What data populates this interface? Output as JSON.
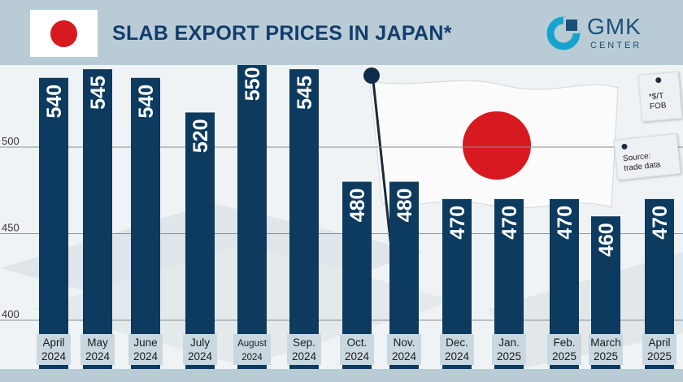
{
  "header": {
    "title": "SLAB EXPORT PRICES IN JAPAN*",
    "logo_line1": "GMK",
    "logo_line2": "CENTER"
  },
  "notes": {
    "unit_line1": "*$/T",
    "unit_line2": "FOB",
    "source_line1": "Source:",
    "source_line2": "trade data"
  },
  "colors": {
    "bar": "#0d3a5f",
    "bar_text": "#ffffff",
    "label_box": "#c9d8e0",
    "grid": "#8a8f94",
    "flag_red": "#d71920",
    "title": "#123c6b"
  },
  "chart_data": {
    "type": "bar",
    "title": "SLAB EXPORT PRICES IN JAPAN*",
    "categories": [
      [
        "April",
        "2024"
      ],
      [
        "May",
        "2024"
      ],
      [
        "June",
        "2024"
      ],
      [
        "July",
        "2024"
      ],
      [
        "August",
        "2024"
      ],
      [
        "Sep.",
        "2024"
      ],
      [
        "Oct.",
        "2024"
      ],
      [
        "Nov.",
        "2024"
      ],
      [
        "Dec.",
        "2024"
      ],
      [
        "Jan.",
        "2025"
      ],
      [
        "Feb.",
        "2025"
      ],
      [
        "March",
        "2025"
      ],
      [
        "April",
        "2025"
      ]
    ],
    "values": [
      540,
      545,
      540,
      520,
      550,
      545,
      480,
      480,
      470,
      470,
      470,
      460,
      470
    ],
    "value_labels": [
      "540",
      "545",
      "540",
      "520",
      "550",
      "545",
      "480",
      "480",
      "470",
      "470",
      "470",
      "460",
      "470"
    ],
    "yticks": [
      "550",
      "500",
      "450",
      "400"
    ],
    "ylim": [
      400,
      550
    ],
    "grid": true,
    "xlabel": "",
    "ylabel": ""
  }
}
